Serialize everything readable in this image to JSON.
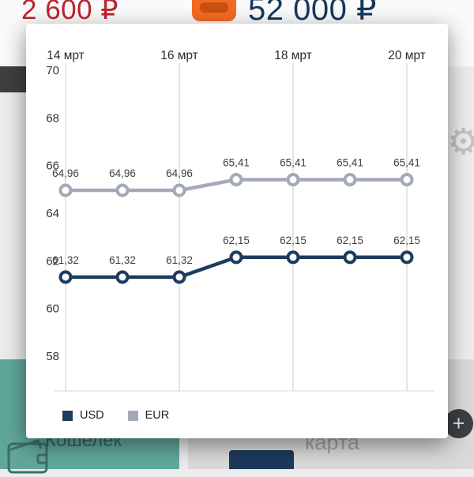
{
  "background": {
    "wallet_balance": "2 600 ₽",
    "card_balance": "52 000 ₽",
    "wallet_card_label": "Кошелёк",
    "bank_card_label": "карта",
    "fab_icon": "+",
    "gear_icon": "⚙"
  },
  "chart_data": {
    "type": "line",
    "title": "",
    "x_tick_labels": [
      "14 мрт",
      "16 мрт",
      "18 мрт",
      "20 мрт"
    ],
    "x_tick_indices": [
      0,
      2,
      4,
      6
    ],
    "num_points": 7,
    "y_ticks": [
      70,
      68,
      66,
      64,
      62,
      60,
      58
    ],
    "ylim": [
      58,
      70
    ],
    "grid": "vertical-only",
    "legend_position": "bottom-left",
    "series": [
      {
        "name": "USD",
        "color": "#1d3c5e",
        "values": [
          61.32,
          61.32,
          61.32,
          62.15,
          62.15,
          62.15,
          62.15
        ],
        "point_labels": [
          "61,32",
          "61,32",
          "61,32",
          "62,15",
          "62,15",
          "62,15",
          "62,15"
        ]
      },
      {
        "name": "EUR",
        "color": "#a2aab6",
        "values": [
          64.96,
          64.96,
          64.96,
          65.41,
          65.41,
          65.41,
          65.41
        ],
        "point_labels": [
          "64,96",
          "64,96",
          "64,96",
          "65,41",
          "65,41",
          "65,41",
          "65,41"
        ]
      }
    ]
  }
}
